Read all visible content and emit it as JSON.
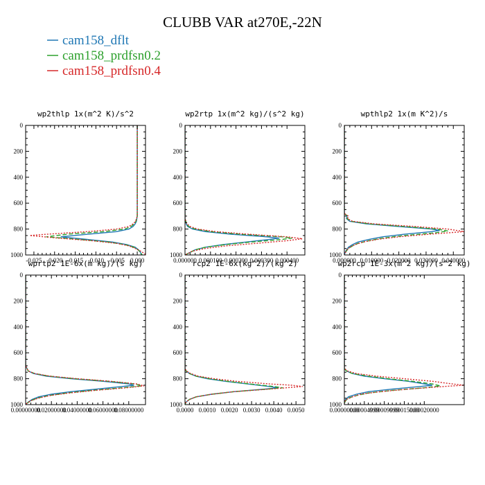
{
  "figure": {
    "title": "CLUBB VAR at270E,-22N",
    "legend": [
      {
        "label": "cam158_dflt",
        "color": "#1f77b4",
        "dash": "solid"
      },
      {
        "label": "cam158_prdfsn0.2",
        "color": "#2ca02c",
        "dash": "dash"
      },
      {
        "label": "cam158_prdfsn0.4",
        "color": "#d62728",
        "dash": "dot"
      }
    ]
  },
  "chart_data": [
    {
      "type": "line",
      "title": "wp2thlp  1x(m^2 K)/s^2",
      "xlim": [
        -0.027,
        0.002
      ],
      "ylim": [
        0,
        1000
      ],
      "xticks": [
        -0.025,
        -0.02,
        -0.015,
        -0.01,
        -0.005,
        0.0
      ],
      "xtick_labels": [
        "-0.025",
        "-0.020",
        "-0.015",
        "-0.010",
        "-0.005",
        "0.000"
      ],
      "yticks": [
        0,
        200,
        400,
        600,
        800,
        1000
      ],
      "ytick_labels": [
        "0",
        "200",
        "400",
        "600",
        "800",
        "1000"
      ],
      "series": [
        {
          "name": "cam158_dflt",
          "pressure": [
            0,
            700,
            740,
            760,
            780,
            800,
            820,
            840,
            860,
            880,
            900,
            920,
            940,
            960,
            980,
            1000
          ],
          "values": [
            0,
            0,
            -0.0002,
            -0.0005,
            -0.001,
            -0.002,
            -0.005,
            -0.012,
            -0.0185,
            -0.012,
            -0.006,
            -0.0025,
            -0.0005,
            0.0003,
            0.0008,
            0.001
          ]
        },
        {
          "name": "cam158_prdfsn0.2",
          "pressure": [
            0,
            700,
            740,
            760,
            780,
            800,
            820,
            840,
            860,
            880,
            900,
            920,
            940,
            960,
            980,
            1000
          ],
          "values": [
            0,
            0,
            -0.0003,
            -0.0007,
            -0.0015,
            -0.003,
            -0.008,
            -0.017,
            -0.022,
            -0.014,
            -0.007,
            -0.003,
            -0.0008,
            0.0002,
            0.0008,
            0.0012
          ]
        },
        {
          "name": "cam158_prdfsn0.4",
          "pressure": [
            0,
            700,
            740,
            760,
            780,
            800,
            820,
            840,
            850,
            870,
            890,
            910,
            930,
            950,
            970,
            990,
            1000
          ],
          "values": [
            0,
            0,
            -0.0004,
            -0.001,
            -0.002,
            -0.005,
            -0.012,
            -0.022,
            -0.026,
            -0.019,
            -0.011,
            -0.005,
            -0.002,
            -0.0005,
            0.0008,
            0.0018,
            0.002
          ]
        }
      ]
    },
    {
      "type": "line",
      "title": "wp2rtp  1x(m^2 kg)/(s^2 kg)",
      "xlim": [
        0.0,
        0.00047
      ],
      "ylim": [
        0,
        1000
      ],
      "xticks": [
        0.0,
        0.0001,
        0.0002,
        0.0003,
        0.0004
      ],
      "xtick_labels": [
        "0.000000",
        "0.000100",
        "0.000200",
        "0.000300",
        "0.000400"
      ],
      "yticks": [
        0,
        200,
        400,
        600,
        800,
        1000
      ],
      "ytick_labels": [
        "0",
        "200",
        "400",
        "600",
        "800",
        "1000"
      ],
      "series": [
        {
          "name": "cam158_dflt",
          "pressure": [
            0,
            720,
            760,
            780,
            800,
            820,
            840,
            860,
            870,
            880,
            900,
            920,
            940,
            960,
            980,
            1000
          ],
          "values": [
            0,
            0,
            5e-06,
            1e-05,
            3e-05,
            8e-05,
            0.00018,
            0.00032,
            0.00037,
            0.00033,
            0.00024,
            0.00015,
            8e-05,
            4e-05,
            2e-05,
            0.0
          ]
        },
        {
          "name": "cam158_prdfsn0.2",
          "pressure": [
            0,
            720,
            760,
            780,
            800,
            820,
            840,
            860,
            870,
            880,
            900,
            920,
            940,
            960,
            980,
            1000
          ],
          "values": [
            0,
            0,
            6e-06,
            1.5e-05,
            4e-05,
            0.0001,
            0.00022,
            0.00038,
            0.00042,
            0.00038,
            0.00026,
            0.00016,
            8e-05,
            4e-05,
            2e-05,
            0.0
          ]
        },
        {
          "name": "cam158_prdfsn0.4",
          "pressure": [
            0,
            720,
            760,
            780,
            800,
            820,
            840,
            860,
            875,
            890,
            910,
            930,
            950,
            970,
            990,
            1000
          ],
          "values": [
            0,
            0,
            8e-06,
            2e-05,
            5e-05,
            0.00012,
            0.00025,
            0.0004,
            0.00046,
            0.0004,
            0.00028,
            0.00016,
            8e-05,
            3e-05,
            1e-05,
            0.0
          ]
        }
      ]
    },
    {
      "type": "line",
      "title": "wpthlp2  1x(m K^2)/s",
      "xlim": [
        0.0,
        0.044
      ],
      "ylim": [
        0,
        1000
      ],
      "xticks": [
        0.0,
        0.01,
        0.02,
        0.03,
        0.04
      ],
      "xtick_labels": [
        "0.000000",
        "0.010000",
        "0.020000",
        "0.030000",
        "0.040000"
      ],
      "yticks": [
        0,
        200,
        400,
        600,
        800,
        1000
      ],
      "ytick_labels": [
        "0",
        "200",
        "400",
        "600",
        "800",
        "1000"
      ],
      "series": [
        {
          "name": "cam158_dflt",
          "pressure": [
            0,
            680,
            700,
            720,
            740,
            760,
            780,
            800,
            810,
            820,
            840,
            860,
            880,
            900,
            920,
            940,
            960,
            980,
            1000
          ],
          "values": [
            0,
            0,
            0.001,
            0.0008,
            0.002,
            0.008,
            0.02,
            0.032,
            0.035,
            0.032,
            0.022,
            0.014,
            0.009,
            0.005,
            0.003,
            0.0015,
            0.0008,
            0.0003,
            0.0
          ]
        },
        {
          "name": "cam158_prdfsn0.2",
          "pressure": [
            0,
            680,
            700,
            720,
            740,
            760,
            780,
            800,
            815,
            830,
            850,
            870,
            890,
            910,
            930,
            950,
            970,
            990,
            1000
          ],
          "values": [
            0,
            0,
            0.0012,
            0.001,
            0.0025,
            0.009,
            0.022,
            0.034,
            0.038,
            0.033,
            0.022,
            0.014,
            0.009,
            0.005,
            0.003,
            0.0015,
            0.0007,
            0.0002,
            0.0
          ]
        },
        {
          "name": "cam158_prdfsn0.4",
          "pressure": [
            0,
            680,
            700,
            720,
            740,
            760,
            780,
            800,
            820,
            840,
            860,
            880,
            900,
            920,
            940,
            960,
            980,
            1000
          ],
          "values": [
            0,
            0,
            0.0015,
            0.0012,
            0.003,
            0.011,
            0.026,
            0.038,
            0.044,
            0.031,
            0.02,
            0.012,
            0.007,
            0.004,
            0.002,
            0.001,
            0.0004,
            0.0
          ]
        }
      ]
    },
    {
      "type": "line",
      "title": "wprtp2  1E-6x(m kg)/(s kg)",
      "xlim": [
        0.0,
        0.093
      ],
      "ylim": [
        0,
        1000
      ],
      "xticks": [
        0.0,
        0.02,
        0.04,
        0.06,
        0.08
      ],
      "xtick_labels": [
        "0.00000000",
        "0.02000000",
        "0.04000000",
        "0.06000000",
        "0.08000000"
      ],
      "yticks": [
        0,
        200,
        400,
        600,
        800,
        1000
      ],
      "ytick_labels": [
        "0",
        "200",
        "400",
        "600",
        "800",
        "1000"
      ],
      "series": [
        {
          "name": "cam158_dflt",
          "pressure": [
            0,
            700,
            720,
            740,
            760,
            780,
            800,
            820,
            840,
            850,
            860,
            880,
            900,
            920,
            940,
            960,
            980,
            1000
          ],
          "values": [
            0,
            0,
            0.001,
            0.002,
            0.006,
            0.016,
            0.035,
            0.06,
            0.08,
            0.084,
            0.075,
            0.055,
            0.035,
            0.02,
            0.01,
            0.005,
            0.002,
            0.0
          ]
        },
        {
          "name": "cam158_prdfsn0.2",
          "pressure": [
            0,
            700,
            720,
            740,
            760,
            780,
            800,
            820,
            840,
            855,
            870,
            890,
            910,
            930,
            950,
            970,
            990,
            1000
          ],
          "values": [
            0,
            0,
            0.001,
            0.002,
            0.007,
            0.018,
            0.038,
            0.064,
            0.085,
            0.09,
            0.075,
            0.052,
            0.032,
            0.018,
            0.009,
            0.004,
            0.001,
            0.0
          ]
        },
        {
          "name": "cam158_prdfsn0.4",
          "pressure": [
            0,
            700,
            720,
            740,
            760,
            780,
            800,
            820,
            840,
            855,
            870,
            890,
            910,
            930,
            950,
            970,
            990,
            1000
          ],
          "values": [
            0,
            0,
            0.001,
            0.002,
            0.007,
            0.019,
            0.04,
            0.066,
            0.086,
            0.092,
            0.078,
            0.054,
            0.034,
            0.019,
            0.01,
            0.004,
            0.001,
            0.0
          ]
        }
      ]
    },
    {
      "type": "line",
      "title": "rcp2  1E-6x(kg^2)/(kg^2)",
      "xlim": [
        0.0,
        0.0054
      ],
      "ylim": [
        0,
        1000
      ],
      "xticks": [
        0.0,
        0.001,
        0.002,
        0.003,
        0.004,
        0.005
      ],
      "xtick_labels": [
        "0.0000",
        "0.0010",
        "0.0020",
        "0.0030",
        "0.0040",
        "0.0050"
      ],
      "yticks": [
        0,
        200,
        400,
        600,
        800,
        1000
      ],
      "ytick_labels": [
        "0",
        "200",
        "400",
        "600",
        "800",
        "1000"
      ],
      "series": [
        {
          "name": "cam158_dflt",
          "pressure": [
            0,
            720,
            740,
            760,
            780,
            800,
            820,
            840,
            860,
            870,
            880,
            900,
            920,
            940,
            960,
            980,
            1000
          ],
          "values": [
            0,
            0,
            5e-05,
            0.0002,
            0.0005,
            0.001,
            0.0018,
            0.0028,
            0.0038,
            0.0042,
            0.0036,
            0.0022,
            0.0012,
            0.0005,
            0.0002,
            5e-05,
            0.0
          ]
        },
        {
          "name": "cam158_prdfsn0.2",
          "pressure": [
            0,
            720,
            740,
            760,
            780,
            800,
            820,
            840,
            860,
            870,
            880,
            900,
            920,
            940,
            960,
            980,
            1000
          ],
          "values": [
            0,
            0,
            5e-05,
            0.0002,
            0.0005,
            0.0011,
            0.0019,
            0.0029,
            0.004,
            0.0044,
            0.0037,
            0.0022,
            0.0012,
            0.0005,
            0.0002,
            5e-05,
            0.0
          ]
        },
        {
          "name": "cam158_prdfsn0.4",
          "pressure": [
            0,
            720,
            740,
            760,
            780,
            800,
            820,
            840,
            850,
            860,
            880,
            900,
            920,
            940,
            960,
            980,
            1000
          ],
          "values": [
            0,
            0,
            6e-05,
            0.00025,
            0.0006,
            0.0013,
            0.0023,
            0.0038,
            0.0048,
            0.0053,
            0.0038,
            0.0022,
            0.0012,
            0.0005,
            0.0002,
            5e-05,
            0.0
          ]
        }
      ]
    },
    {
      "type": "line",
      "title": "wp2rcp  1E-3x(m^2 kg)/(s^2 kg)",
      "xlim": [
        0.0,
        0.0003
      ],
      "ylim": [
        0,
        1000
      ],
      "xticks": [
        0.0,
        5e-05,
        0.0001,
        0.00015,
        0.0002
      ],
      "xtick_labels": [
        "0.00000000",
        "0.00004999",
        "0.00009999",
        "0.00015000",
        "0.00020000"
      ],
      "yticks": [
        0,
        200,
        400,
        600,
        800,
        1000
      ],
      "ytick_labels": [
        "0",
        "200",
        "400",
        "600",
        "800",
        "1000"
      ],
      "series": [
        {
          "name": "cam158_dflt",
          "pressure": [
            0,
            720,
            740,
            760,
            780,
            800,
            820,
            840,
            850,
            860,
            880,
            900,
            920,
            940,
            960,
            980,
            1000
          ],
          "values": [
            0,
            0,
            5e-06,
            2e-05,
            5e-05,
            0.0001,
            0.00016,
            0.0002,
            0.00022,
            0.00019,
            0.00012,
            6e-05,
            3e-05,
            1e-05,
            3e-06,
            0.0,
            0.0
          ]
        },
        {
          "name": "cam158_prdfsn0.2",
          "pressure": [
            0,
            720,
            740,
            760,
            780,
            800,
            820,
            840,
            855,
            870,
            890,
            910,
            930,
            950,
            970,
            990,
            1000
          ],
          "values": [
            0,
            0,
            5e-06,
            2e-05,
            6e-05,
            0.00011,
            0.00017,
            0.00022,
            0.00024,
            0.0002,
            0.00012,
            6e-05,
            3e-05,
            1e-05,
            3e-06,
            0.0,
            0.0
          ]
        },
        {
          "name": "cam158_prdfsn0.4",
          "pressure": [
            0,
            720,
            740,
            760,
            780,
            800,
            820,
            840,
            850,
            860,
            880,
            900,
            920,
            940,
            960,
            980,
            1000
          ],
          "values": [
            0,
            0,
            8e-06,
            3e-05,
            8e-05,
            0.00015,
            0.00022,
            0.00027,
            0.0003,
            0.00025,
            0.00016,
            9e-05,
            4e-05,
            2e-05,
            5e-06,
            0.0,
            0.0
          ]
        }
      ]
    }
  ]
}
